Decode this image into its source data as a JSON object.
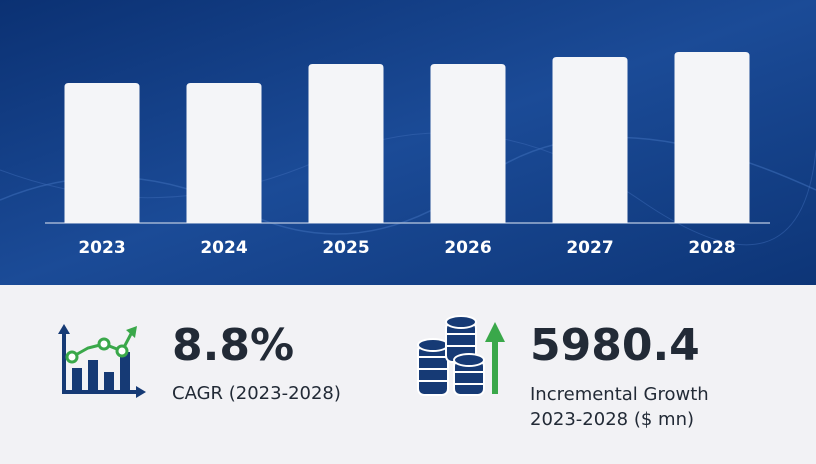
{
  "chart_data": {
    "type": "bar",
    "categories": [
      "2023",
      "2024",
      "2025",
      "2026",
      "2027",
      "2028"
    ],
    "values": [
      140,
      140,
      159,
      159,
      166,
      171
    ],
    "color": "#f4f5f8",
    "ylim": [
      0,
      175
    ]
  },
  "stats": [
    {
      "value": "8.8%",
      "label": "CAGR (2023-2028)"
    },
    {
      "value": "5980.4",
      "label": [
        "Incremental Growth",
        "2023-2028 ($ mn)"
      ]
    }
  ]
}
